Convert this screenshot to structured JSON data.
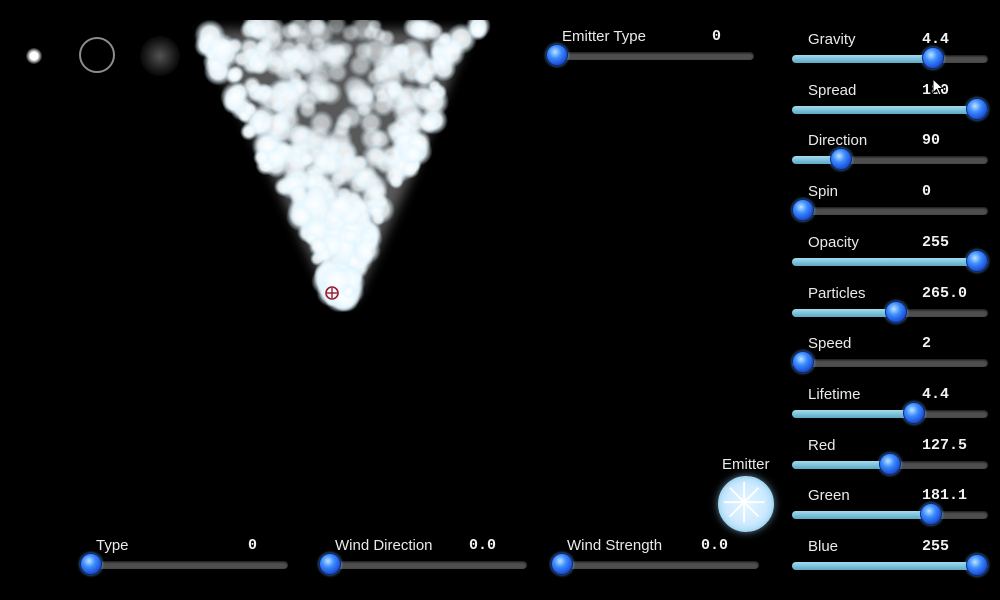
{
  "top_sliders": [
    {
      "id": "emitter-type",
      "label": "Emitter Type",
      "value": "0",
      "fraction": 0.0
    }
  ],
  "right_sliders": [
    {
      "id": "gravity",
      "label": "Gravity",
      "value": "4.4",
      "fraction": 0.72
    },
    {
      "id": "spread",
      "label": "Spread",
      "value": "180",
      "fraction": 1.0
    },
    {
      "id": "direction",
      "label": "Direction",
      "value": "90",
      "fraction": 0.25
    },
    {
      "id": "spin",
      "label": "Spin",
      "value": "0",
      "fraction": 0.0
    },
    {
      "id": "opacity",
      "label": "Opacity",
      "value": "255",
      "fraction": 1.0
    },
    {
      "id": "particles",
      "label": "Particles",
      "value": "265.0",
      "fraction": 0.53
    },
    {
      "id": "speed",
      "label": "Speed",
      "value": "2",
      "fraction": 0.03
    },
    {
      "id": "lifetime",
      "label": "Lifetime",
      "value": "4.4",
      "fraction": 0.62
    },
    {
      "id": "red",
      "label": "Red",
      "value": "127.5",
      "fraction": 0.5
    },
    {
      "id": "green",
      "label": "Green",
      "value": "181.1",
      "fraction": 0.71
    },
    {
      "id": "blue",
      "label": "Blue",
      "value": "255",
      "fraction": 1.0
    }
  ],
  "bottom_sliders": [
    {
      "id": "type",
      "label": "Type",
      "value": "0",
      "fraction": 0.0
    },
    {
      "id": "wind-direction",
      "label": "Wind Direction",
      "value": "0.0",
      "fraction": 0.0
    },
    {
      "id": "wind-strength",
      "label": "Wind Strength",
      "value": "0.0",
      "fraction": 0.0
    }
  ],
  "emitter": {
    "label": "Emitter"
  },
  "colors": {
    "accent": "#3b8cff",
    "track_fill": "#7cc3dc",
    "track": "#4e4e4e",
    "background": "#000000"
  },
  "icons": {
    "cursor": "mouse-pointer-icon",
    "emitter_marker": "crosshair-icon",
    "emitter_button": "segmented-wheel-icon"
  }
}
